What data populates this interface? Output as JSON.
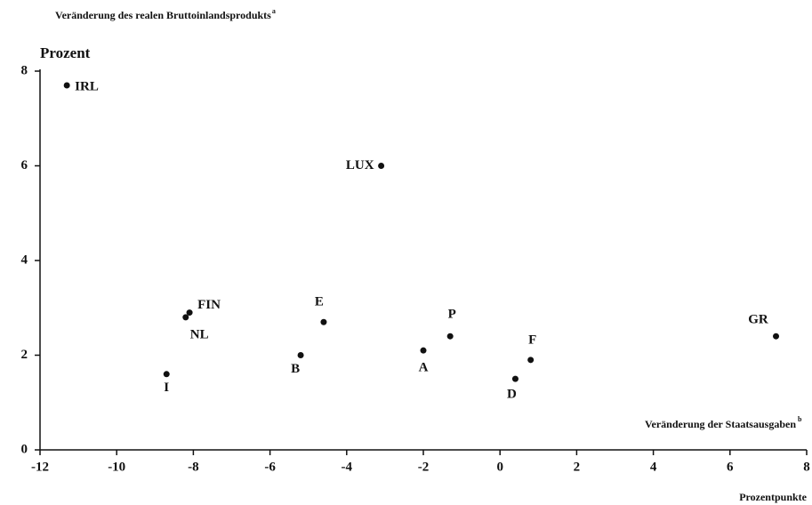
{
  "chart_data": {
    "type": "scatter",
    "title": "Veränderung des realen Bruttoinlandsprodukts",
    "title_note": "a",
    "y_label": "Prozent",
    "x_label": "Veränderung der Staatsausgaben",
    "x_label_note": "b",
    "x_unit": "Prozentpunkte",
    "labels": [
      "IRL",
      "LUX",
      "FIN",
      "NL",
      "I",
      "B",
      "E",
      "A",
      "P",
      "D",
      "F",
      "GR"
    ],
    "x": [
      -11.3,
      -3.1,
      -8.1,
      -8.2,
      -8.7,
      -5.2,
      -4.6,
      -2.0,
      -1.3,
      0.4,
      0.8,
      7.2
    ],
    "values": [
      7.7,
      6.0,
      2.9,
      2.8,
      1.6,
      2.0,
      2.7,
      2.1,
      2.4,
      1.5,
      1.9,
      2.4
    ],
    "color": "#111111",
    "xlim": [
      -12,
      8
    ],
    "xticks": [
      -12,
      -10,
      -8,
      -6,
      -4,
      -2,
      0,
      2,
      4,
      6,
      8
    ],
    "ylim": [
      0,
      8
    ],
    "yticks": [
      0,
      2,
      4,
      6,
      8
    ]
  }
}
